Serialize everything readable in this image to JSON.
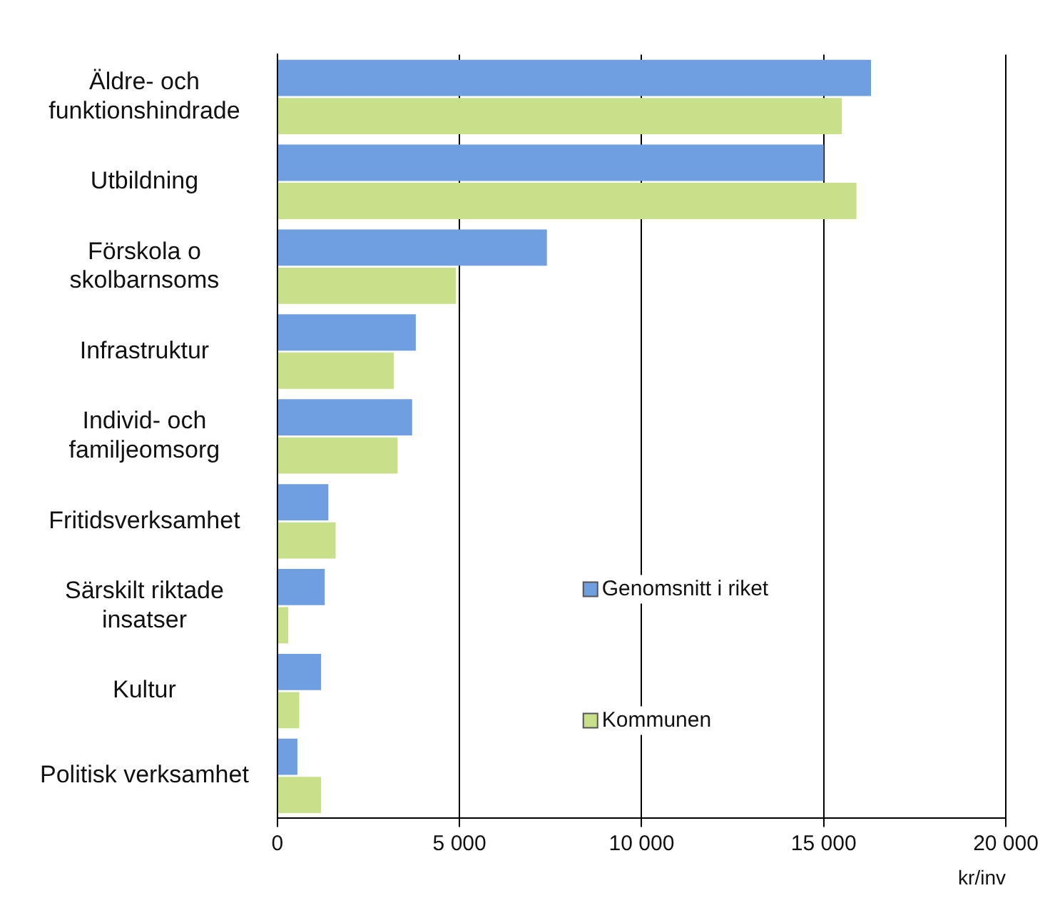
{
  "chart_data": {
    "type": "bar",
    "orientation": "horizontal",
    "xlabel": "kr/inv",
    "categories": [
      "Äldre- och funktionshindrade",
      "Utbildning",
      "Förskola o skolbarnsoms",
      "Infrastruktur",
      "Individ- och familjeomsorg",
      "Fritidsverksamhet",
      "Särskilt riktade insatser",
      "Kultur",
      "Politisk verksamhet"
    ],
    "series": [
      {
        "name": "Genomsnitt i riket",
        "color": "#6f9fe0",
        "values": [
          16300,
          15000,
          7400,
          3800,
          3700,
          1400,
          1300,
          1200,
          550
        ]
      },
      {
        "name": "Kommunen",
        "color": "#c9e08a",
        "values": [
          15500,
          15900,
          4900,
          3200,
          3300,
          1600,
          300,
          600,
          1200
        ]
      }
    ],
    "xlim": [
      0,
      20000
    ],
    "xticks": [
      0,
      {
        "value": 5000,
        "label": "5 000"
      },
      {
        "value": 10000,
        "label": "10 000"
      },
      {
        "value": 15000,
        "label": "15 000"
      },
      {
        "value": 20000,
        "label": "20 000"
      }
    ],
    "grid": "x",
    "legend": "bottom right"
  }
}
